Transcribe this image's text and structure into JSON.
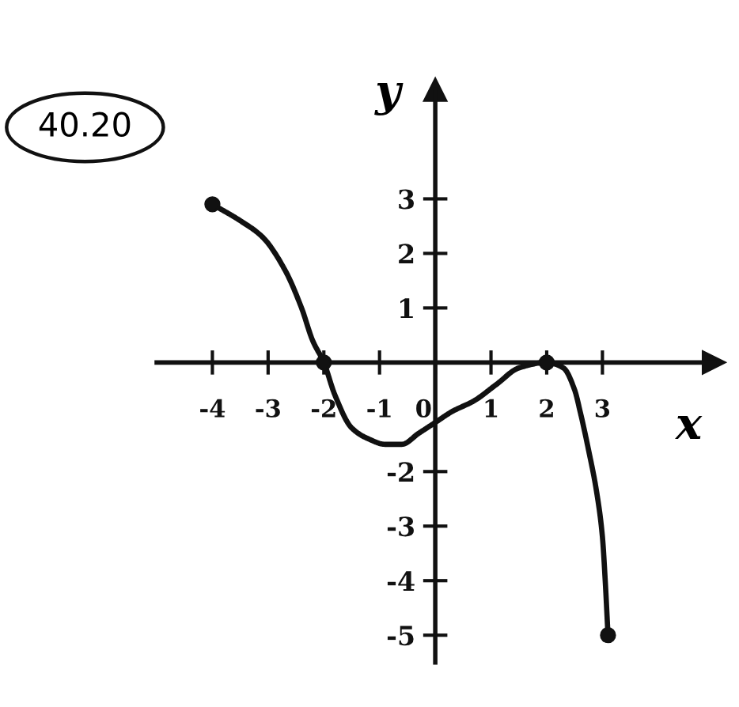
{
  "chart_data": {
    "type": "line",
    "xlabel": "x",
    "ylabel": "y",
    "annotations": [
      "40.20"
    ],
    "xlim": [
      -5,
      5
    ],
    "ylim": [
      -5.5,
      5
    ],
    "xticks": [
      -4,
      -3,
      -2,
      -1,
      0,
      1,
      2,
      3
    ],
    "yticks": [
      -5,
      -4,
      -3,
      -2,
      1,
      2,
      3
    ],
    "grid": false,
    "series": [
      {
        "color": "#111111",
        "x": [
          -4,
          -3.5,
          -3.1,
          -2.7,
          -2.4,
          -2.2,
          -2,
          -1.8,
          -1.5,
          -1.2,
          -0.9,
          -0.6,
          -0.3,
          0,
          0.3,
          0.7,
          1.1,
          1.5,
          2,
          2.3,
          2.5,
          2.6,
          2.75,
          2.9,
          3.0,
          3.05,
          3.1
        ],
        "values": [
          2.9,
          2.6,
          2.3,
          1.7,
          1.0,
          0.4,
          0,
          -0.6,
          -1.2,
          -1.4,
          -1.5,
          -1.5,
          -1.3,
          -1.1,
          -0.9,
          -0.7,
          -0.4,
          -0.1,
          0,
          -0.1,
          -0.5,
          -0.9,
          -1.6,
          -2.4,
          -3.2,
          -4.0,
          -5
        ]
      },
      {
        "type": "scatter",
        "color": "#111111",
        "marker": "circle",
        "x": [
          -4,
          -2,
          2,
          3.1
        ],
        "values": [
          2.9,
          0,
          0,
          -5
        ]
      }
    ]
  }
}
